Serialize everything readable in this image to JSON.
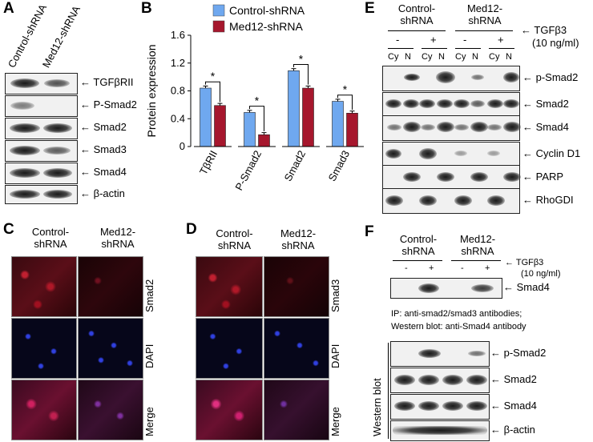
{
  "panels": {
    "A": "A",
    "B": "B",
    "C": "C",
    "D": "D",
    "E": "E",
    "F": "F"
  },
  "panelA": {
    "lanes": [
      "Control-shRNA",
      "Med12-shRNA"
    ],
    "rows": [
      "TGFβRII",
      "P-Smad2",
      "Smad2",
      "Smad3",
      "Smad4",
      "β-actin"
    ]
  },
  "chart_data": {
    "type": "bar",
    "categories": [
      "TβRII",
      "P-Smad2",
      "Smad2",
      "Smad3"
    ],
    "series": [
      {
        "name": "Control-shRNA",
        "values": [
          0.84,
          0.49,
          1.09,
          0.65
        ],
        "color": "#6fa8ef"
      },
      {
        "name": "Med12-shRNA",
        "values": [
          0.59,
          0.17,
          0.84,
          0.48
        ],
        "color": "#a6172d"
      }
    ],
    "significance": [
      "*",
      "*",
      "*",
      "*"
    ],
    "ylabel": "Protein expression",
    "ylim": [
      0,
      1.6
    ],
    "yticks": [
      "0",
      "0.4",
      "0.8",
      "1.2",
      "1.6"
    ],
    "legend": "top"
  },
  "panelC": {
    "cols": [
      "Control-\nshRNA",
      "Med12-\nshRNA"
    ],
    "col1": "Control-",
    "col1b": "shRNA",
    "col2": "Med12-",
    "col2b": "shRNA",
    "rows": [
      "Smad2",
      "DAPI",
      "Merge"
    ]
  },
  "panelD": {
    "col1": "Control-",
    "col1b": "shRNA",
    "col2": "Med12-",
    "col2b": "shRNA",
    "rows": [
      "Smad3",
      "DAPI",
      "Merge"
    ]
  },
  "panelE": {
    "g1a": "Control-",
    "g1b": "shRNA",
    "g2a": "Med12-",
    "g2b": "shRNA",
    "tgf": "TGFβ3",
    "conc": "(10 ng/ml)",
    "signs": [
      "-",
      "+",
      "-",
      "+"
    ],
    "fractions": [
      "Cy",
      "N",
      "Cy",
      "N",
      "Cy",
      "N",
      "Cy",
      "N"
    ],
    "rows": [
      "p-Smad2",
      "Smad2",
      "Smad4",
      "Cyclin D1",
      "PARP",
      "RhoGDI"
    ]
  },
  "panelF": {
    "g1a": "Control-",
    "g1b": "shRNA",
    "g2a": "Med12-",
    "g2b": "shRNA",
    "tgf": "TGFβ3",
    "conc": "(10 ng/ml)",
    "signs": [
      "-",
      "+",
      "-",
      "+"
    ],
    "ip_row": "Smad4",
    "ip_note1": "IP: anti-smad2/smad3 antibodies;",
    "ip_note2": "Western blot: anti-Smad4 antibody",
    "wb_label": "Western blot",
    "rows": [
      "p-Smad2",
      "Smad2",
      "Smad4",
      "β-actin"
    ]
  }
}
